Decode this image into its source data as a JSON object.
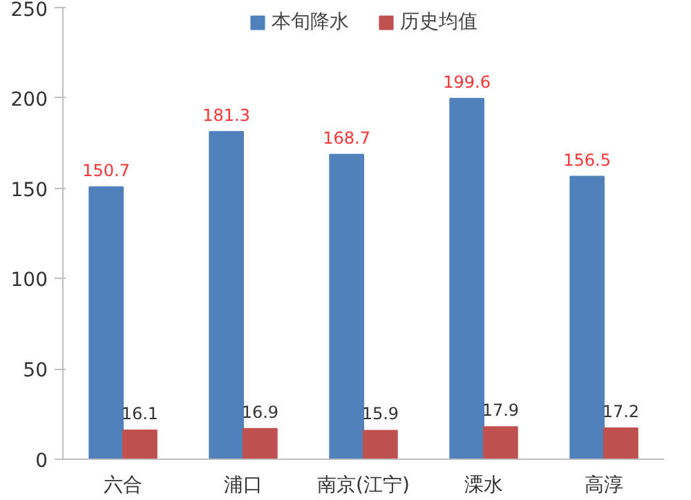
{
  "chart_data": {
    "type": "bar",
    "categories": [
      "六合",
      "浦口",
      "南京(江宁)",
      "溧水",
      "高淳"
    ],
    "series": [
      {
        "name": "本旬降水",
        "color": "#4f81bd",
        "values": [
          150.7,
          181.3,
          168.7,
          199.6,
          156.5
        ]
      },
      {
        "name": "历史均值",
        "color": "#c0504d",
        "values": [
          16.1,
          16.9,
          15.9,
          17.9,
          17.2
        ]
      }
    ],
    "ylim": [
      0,
      250
    ],
    "yticks": [
      0,
      50,
      100,
      150,
      200,
      250
    ],
    "grid": false,
    "legend": "top",
    "data_labels": true
  }
}
